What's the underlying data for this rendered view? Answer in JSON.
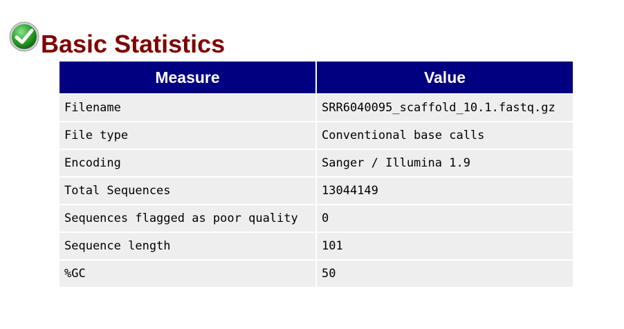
{
  "header": {
    "status_icon": "check-circle-icon",
    "title": "Basic Statistics"
  },
  "table": {
    "columns": [
      "Measure",
      "Value"
    ],
    "rows": [
      {
        "measure": "Filename",
        "value": "SRR6040095_scaffold_10.1.fastq.gz"
      },
      {
        "measure": "File type",
        "value": "Conventional base calls"
      },
      {
        "measure": "Encoding",
        "value": "Sanger / Illumina 1.9"
      },
      {
        "measure": "Total Sequences",
        "value": "13044149"
      },
      {
        "measure": "Sequences flagged as poor quality",
        "value": "0"
      },
      {
        "measure": "Sequence length",
        "value": "101"
      },
      {
        "measure": "%GC",
        "value": "50"
      }
    ]
  },
  "colors": {
    "title": "#800000",
    "header_bg": "#000080",
    "header_text": "#ffffff",
    "cell_bg": "#eeeeee",
    "status_pass": "#1f9a1f"
  }
}
